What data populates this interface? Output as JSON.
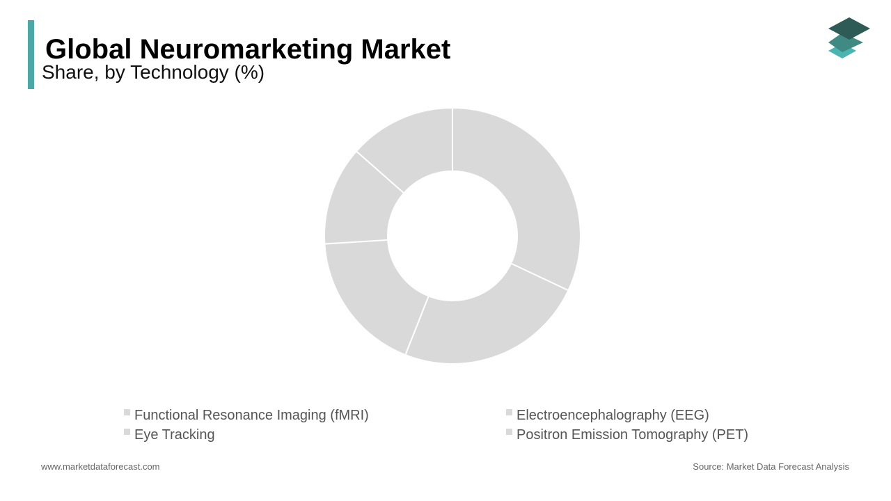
{
  "chart_data": {
    "type": "donut",
    "title": "Global Neuromarketing Market",
    "subtitle": "Share, by Technology (%)",
    "categories": [
      "Functional Resonance Imaging (fMRI)",
      "Electroencephalography (EEG)",
      "Eye Tracking",
      "Positron Emission Tomography (PET)",
      null
    ],
    "values": [
      32,
      24,
      18,
      12.5,
      13.5
    ],
    "color": "#d9d9d9"
  },
  "footer": {
    "website": "www.marketdataforecast.com",
    "source": "Source: Market Data Forecast Analysis"
  }
}
